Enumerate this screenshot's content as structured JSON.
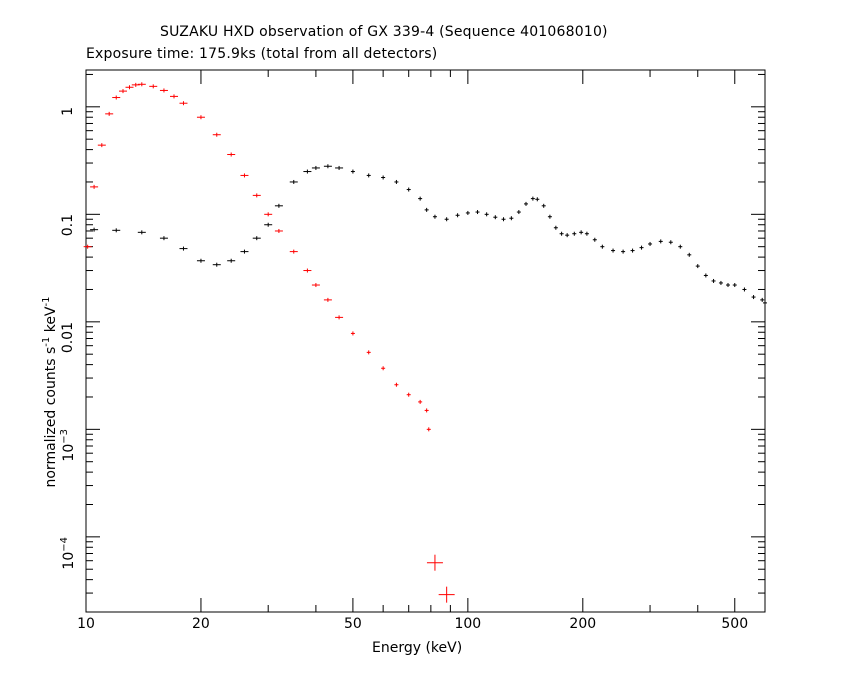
{
  "title": "SUZAKU HXD observation of GX 339-4 (Sequence 401068010)",
  "subtitle": "Exposure time: 175.9ks (total from all detectors)",
  "chart_data": {
    "type": "scatter",
    "title": "SUZAKU HXD observation of GX 339-4 (Sequence 401068010)",
    "subtitle": "Exposure time: 175.9ks (total from all detectors)",
    "xlabel": "Energy (keV)",
    "ylabel_text": "normalized counts s",
    "ylabel_units": [
      "-1",
      "keV",
      "-1"
    ],
    "xscale": "log",
    "yscale": "log",
    "xlim": [
      10,
      600
    ],
    "ylim": [
      2e-05,
      2.2
    ],
    "xticks": [
      10,
      20,
      50,
      100,
      200,
      500
    ],
    "xtick_labels": [
      "10",
      "20",
      "50",
      "100",
      "200",
      "500"
    ],
    "yticks": [
      {
        "value": 1,
        "base": "1",
        "exp": ""
      },
      {
        "value": 0.1,
        "base": "0.1",
        "exp": ""
      },
      {
        "value": 0.01,
        "base": "0.01",
        "exp": ""
      },
      {
        "value": 0.001,
        "base": "10",
        "exp": "−3"
      },
      {
        "value": 0.0001,
        "base": "10",
        "exp": "−4"
      }
    ],
    "series": [
      {
        "color": "#ff0000",
        "points": [
          [
            10.1,
            0.05
          ],
          [
            10.5,
            0.18
          ],
          [
            11,
            0.44
          ],
          [
            11.5,
            0.86
          ],
          [
            12,
            1.22
          ],
          [
            12.5,
            1.4
          ],
          [
            13,
            1.52
          ],
          [
            13.5,
            1.6
          ],
          [
            14,
            1.62
          ],
          [
            15,
            1.55
          ],
          [
            16,
            1.42
          ],
          [
            17,
            1.25
          ],
          [
            18,
            1.08
          ],
          [
            20,
            0.8
          ],
          [
            22,
            0.55
          ],
          [
            24,
            0.36
          ],
          [
            26,
            0.23
          ],
          [
            28,
            0.15
          ],
          [
            30,
            0.1
          ],
          [
            32,
            0.07
          ],
          [
            35,
            0.045
          ],
          [
            38,
            0.03
          ],
          [
            40,
            0.022
          ],
          [
            43,
            0.016
          ],
          [
            46,
            0.011
          ],
          [
            50,
            0.0078
          ],
          [
            55,
            0.0052
          ],
          [
            60,
            0.0037
          ],
          [
            65,
            0.0026
          ],
          [
            70,
            0.0021
          ],
          [
            75,
            0.0018
          ],
          [
            78,
            0.0015
          ],
          [
            79,
            0.001
          ],
          [
            82,
            5.75e-05
          ],
          [
            88,
            2.9e-05
          ]
        ]
      },
      {
        "color": "#000000",
        "points": [
          [
            10.5,
            0.072
          ],
          [
            12,
            0.071
          ],
          [
            14,
            0.068
          ],
          [
            16,
            0.06
          ],
          [
            18,
            0.048
          ],
          [
            20,
            0.037
          ],
          [
            22,
            0.034
          ],
          [
            24,
            0.037
          ],
          [
            26,
            0.045
          ],
          [
            28,
            0.06
          ],
          [
            30,
            0.08
          ],
          [
            32,
            0.12
          ],
          [
            35,
            0.2
          ],
          [
            38,
            0.25
          ],
          [
            40,
            0.27
          ],
          [
            43,
            0.28
          ],
          [
            46,
            0.27
          ],
          [
            50,
            0.25
          ],
          [
            55,
            0.23
          ],
          [
            60,
            0.22
          ],
          [
            65,
            0.2
          ],
          [
            70,
            0.17
          ],
          [
            75,
            0.14
          ],
          [
            78,
            0.11
          ],
          [
            82,
            0.095
          ],
          [
            88,
            0.09
          ],
          [
            94,
            0.098
          ],
          [
            100,
            0.103
          ],
          [
            106,
            0.105
          ],
          [
            112,
            0.1
          ],
          [
            118,
            0.094
          ],
          [
            124,
            0.09
          ],
          [
            130,
            0.092
          ],
          [
            136,
            0.105
          ],
          [
            142,
            0.125
          ],
          [
            148,
            0.14
          ],
          [
            152,
            0.138
          ],
          [
            158,
            0.12
          ],
          [
            164,
            0.095
          ],
          [
            170,
            0.075
          ],
          [
            176,
            0.066
          ],
          [
            182,
            0.064
          ],
          [
            190,
            0.066
          ],
          [
            198,
            0.068
          ],
          [
            205,
            0.066
          ],
          [
            215,
            0.058
          ],
          [
            225,
            0.05
          ],
          [
            240,
            0.046
          ],
          [
            255,
            0.045
          ],
          [
            270,
            0.046
          ],
          [
            285,
            0.049
          ],
          [
            300,
            0.053
          ],
          [
            320,
            0.056
          ],
          [
            340,
            0.055
          ],
          [
            360,
            0.05
          ],
          [
            380,
            0.042
          ],
          [
            400,
            0.033
          ],
          [
            420,
            0.027
          ],
          [
            440,
            0.024
          ],
          [
            460,
            0.023
          ],
          [
            480,
            0.022
          ],
          [
            500,
            0.022
          ],
          [
            530,
            0.02
          ],
          [
            560,
            0.017
          ],
          [
            590,
            0.016
          ],
          [
            600,
            0.015
          ]
        ]
      }
    ],
    "grid": false,
    "legend": false
  }
}
